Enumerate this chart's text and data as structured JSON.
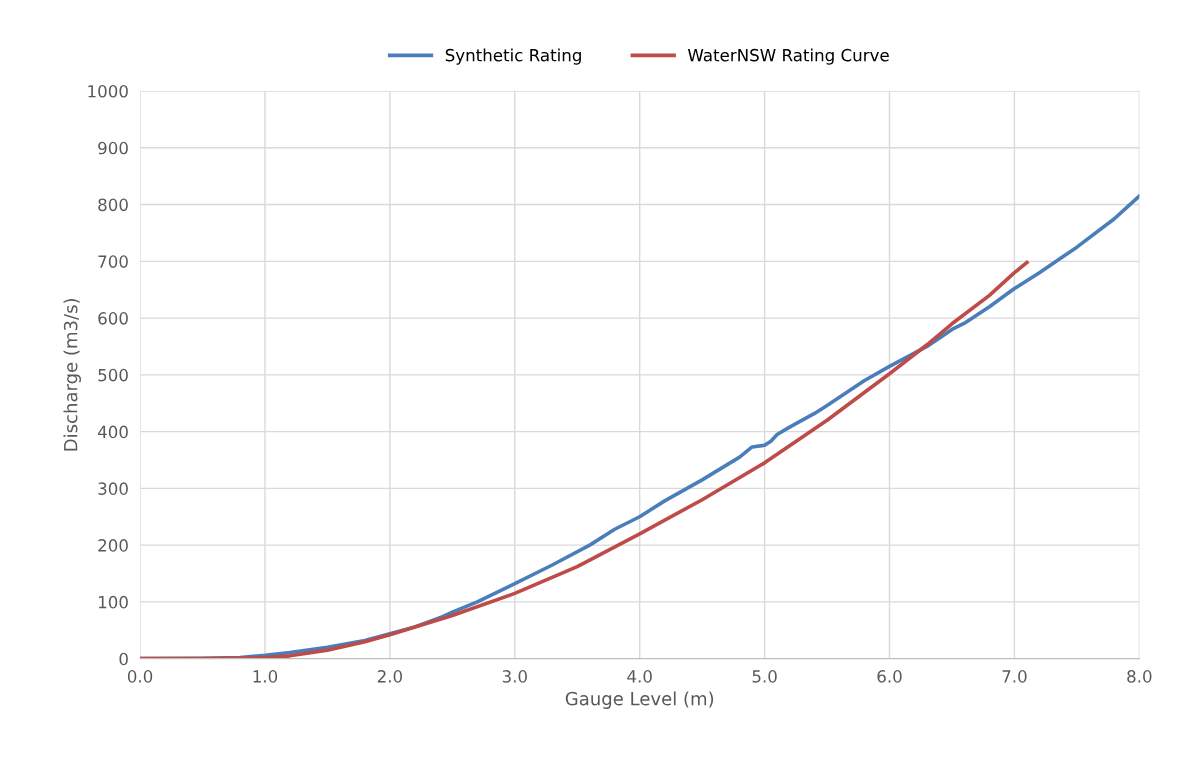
{
  "chart_data": {
    "type": "line",
    "xlabel": "Gauge Level (m)",
    "ylabel": "Discharge (m3/s)",
    "xlim": [
      0,
      8
    ],
    "xticks": [
      {
        "value": 0,
        "label": "0.0"
      },
      {
        "value": 1,
        "label": "1.0"
      },
      {
        "value": 2,
        "label": "2.0"
      },
      {
        "value": 3,
        "label": "3.0"
      },
      {
        "value": 4,
        "label": "4.0"
      },
      {
        "value": 5,
        "label": "5.0"
      },
      {
        "value": 6,
        "label": "6.0"
      },
      {
        "value": 7,
        "label": "7.0"
      },
      {
        "value": 8,
        "label": "8.0"
      }
    ],
    "ylim": [
      0,
      1000
    ],
    "yticks": [
      0,
      100,
      200,
      300,
      400,
      500,
      600,
      700,
      800,
      900,
      1000
    ],
    "grid": true,
    "legend": "top",
    "marker": "none",
    "line_style": "solid",
    "series": [
      {
        "name": "Synthetic Rating",
        "color": "#4a7ebb",
        "x": [
          0,
          0.5,
          0.8,
          1.0,
          1.2,
          1.5,
          1.8,
          2.0,
          2.2,
          2.4,
          2.5,
          2.7,
          3.0,
          3.3,
          3.6,
          3.8,
          4.0,
          4.2,
          4.5,
          4.8,
          4.9,
          5.0,
          5.05,
          5.1,
          5.2,
          5.4,
          5.5,
          5.8,
          6.0,
          6.3,
          6.5,
          6.6,
          6.8,
          7.0,
          7.2,
          7.5,
          7.8,
          7.9,
          8.0
        ],
        "values": [
          0,
          0.5,
          2,
          6,
          11,
          20,
          32,
          44,
          56,
          72,
          82,
          100,
          132,
          165,
          200,
          228,
          250,
          278,
          315,
          355,
          373,
          376,
          383,
          395,
          408,
          432,
          446,
          490,
          515,
          550,
          580,
          591,
          620,
          652,
          680,
          725,
          775,
          795,
          815
        ]
      },
      {
        "name": "WaterNSW Rating Curve",
        "color": "#be4b48",
        "x": [
          0,
          0.5,
          0.8,
          1.0,
          1.2,
          1.5,
          1.8,
          2.0,
          2.5,
          3.0,
          3.5,
          4.0,
          4.5,
          5.0,
          5.5,
          6.0,
          6.3,
          6.5,
          6.8,
          7.0,
          7.1
        ],
        "values": [
          0,
          0,
          1,
          2,
          5,
          15,
          30,
          42,
          76,
          115,
          162,
          220,
          280,
          345,
          420,
          502,
          553,
          590,
          640,
          680,
          698
        ]
      }
    ]
  }
}
